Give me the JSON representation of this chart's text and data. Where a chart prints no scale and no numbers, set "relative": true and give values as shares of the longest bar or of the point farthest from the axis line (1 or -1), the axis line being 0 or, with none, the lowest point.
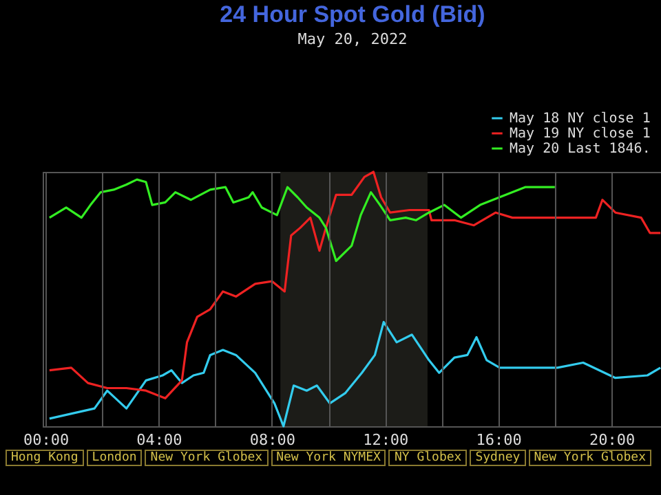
{
  "chart_data": {
    "type": "line",
    "title": "24 Hour Spot Gold (Bid)",
    "subtitle": "May 20, 2022",
    "relative": true,
    "legend": "top right",
    "grid": "x",
    "marker": "none",
    "line_style": "solid",
    "xlim": [
      -0.1,
      21.8
    ],
    "xticks": [
      {
        "value": 0,
        "label": "00:00"
      },
      {
        "value": 2,
        "label": null
      },
      {
        "value": 4,
        "label": "04:00"
      },
      {
        "value": 6,
        "label": null
      },
      {
        "value": 8,
        "label": "08:00"
      },
      {
        "value": 10,
        "label": null
      },
      {
        "value": 12,
        "label": "12:00"
      },
      {
        "value": 14,
        "label": null
      },
      {
        "value": 16,
        "label": "16:00"
      },
      {
        "value": 18,
        "label": null
      },
      {
        "value": 20,
        "label": "20:00"
      }
    ],
    "bands": [
      {
        "axis": "x",
        "from": 8.3,
        "to": 13.5,
        "color": "#1c1c18"
      }
    ],
    "series": [
      {
        "name": "May 18 NY close 1",
        "color": "#33ccee",
        "x": [
          0.14,
          1.73,
          2.18,
          2.86,
          3.55,
          4.14,
          4.45,
          4.82,
          5.23,
          5.59,
          5.82,
          6.27,
          6.73,
          7.41,
          8.09,
          8.41,
          8.77,
          9.23,
          9.59,
          10.05,
          10.59,
          11.18,
          11.64,
          11.95,
          12.41,
          12.95,
          13.55,
          13.91,
          14.45,
          14.91,
          15.23,
          15.59,
          16.05,
          17.18,
          18.09,
          19.0,
          20.14,
          21.27,
          21.73
        ],
        "values": [
          0.03,
          0.07,
          0.14,
          0.07,
          0.18,
          0.2,
          0.22,
          0.17,
          0.2,
          0.21,
          0.28,
          0.3,
          0.28,
          0.21,
          0.09,
          0,
          0.16,
          0.14,
          0.16,
          0.09,
          0.13,
          0.21,
          0.28,
          0.41,
          0.33,
          0.36,
          0.26,
          0.21,
          0.27,
          0.28,
          0.35,
          0.26,
          0.23,
          0.23,
          0.23,
          0.25,
          0.19,
          0.2,
          0.23
        ]
      },
      {
        "name": "May 19 NY close 1",
        "color": "#ee2222",
        "x": [
          0.14,
          0.91,
          1.5,
          2.18,
          2.86,
          3.55,
          4.23,
          4.82,
          5.0,
          5.36,
          5.82,
          6.27,
          6.73,
          7.41,
          8.0,
          8.45,
          8.68,
          9.0,
          9.36,
          9.68,
          9.91,
          10.27,
          10.82,
          11.27,
          11.59,
          11.86,
          12.18,
          12.86,
          13.55,
          13.64,
          14.45,
          15.14,
          15.91,
          16.5,
          18.09,
          19.45,
          19.68,
          20.14,
          21.05,
          21.36,
          21.73
        ],
        "values": [
          0.22,
          0.23,
          0.17,
          0.15,
          0.15,
          0.14,
          0.11,
          0.18,
          0.33,
          0.43,
          0.46,
          0.53,
          0.51,
          0.56,
          0.57,
          0.53,
          0.75,
          0.78,
          0.82,
          0.69,
          0.78,
          0.91,
          0.91,
          0.98,
          1,
          0.9,
          0.84,
          0.85,
          0.85,
          0.81,
          0.81,
          0.79,
          0.84,
          0.82,
          0.82,
          0.82,
          0.89,
          0.84,
          0.82,
          0.76,
          0.76
        ]
      },
      {
        "name": "May 20 Last 1846.",
        "color": "#33ee22",
        "x": [
          0.14,
          0.73,
          1.27,
          1.59,
          1.95,
          2.41,
          2.86,
          3.23,
          3.55,
          3.77,
          4.23,
          4.59,
          5.14,
          5.82,
          6.36,
          6.64,
          7.18,
          7.32,
          7.64,
          8.18,
          8.55,
          8.91,
          9.23,
          9.68,
          9.91,
          10.27,
          10.82,
          11.14,
          11.5,
          11.82,
          12.18,
          12.73,
          13.09,
          13.55,
          14.09,
          14.68,
          15.36,
          16.27,
          16.95,
          18.0
        ],
        "values": [
          0.82,
          0.86,
          0.82,
          0.87,
          0.92,
          0.93,
          0.95,
          0.97,
          0.96,
          0.87,
          0.88,
          0.92,
          0.89,
          0.93,
          0.94,
          0.88,
          0.9,
          0.92,
          0.86,
          0.83,
          0.94,
          0.9,
          0.86,
          0.82,
          0.78,
          0.65,
          0.71,
          0.83,
          0.92,
          0.87,
          0.81,
          0.82,
          0.81,
          0.84,
          0.87,
          0.82,
          0.87,
          0.91,
          0.94,
          0.94
        ]
      }
    ],
    "annotations": [
      "Hong Kong",
      "London",
      "New York Globex",
      "New York NYMEX",
      "NY Globex",
      "Sydney",
      "New York Globex"
    ]
  }
}
